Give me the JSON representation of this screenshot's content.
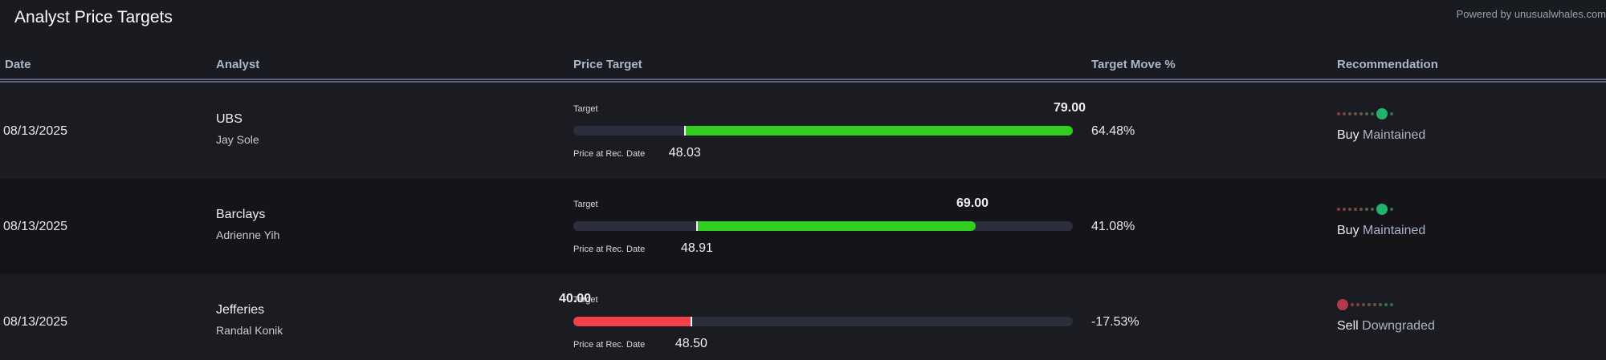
{
  "header": {
    "title": "Analyst Price Targets",
    "powered_by": "Powered by unusualwhales.com"
  },
  "columns": {
    "date": "Date",
    "analyst": "Analyst",
    "price_target": "Price Target",
    "target_move": "Target Move %",
    "recommendation": "Recommendation"
  },
  "labels": {
    "target": "Target",
    "price_at_rec": "Price at Rec. Date"
  },
  "colors": {
    "up": "#2fce1f",
    "down": "#f2414a",
    "buy_dot": "#21b36b",
    "sell_dot": "#b5394c",
    "dot_scale": [
      "#8a3a45",
      "#7d4144",
      "#734a44",
      "#6a5344",
      "#5f5b43",
      "#4e6548",
      "#3c6b4f",
      "#2f7053"
    ]
  },
  "scale": {
    "min": 40.0,
    "max": 76.0
  },
  "rows": [
    {
      "date": "08/13/2025",
      "firm": "UBS",
      "analyst": "Jay Sole",
      "target": "79.00",
      "current": "48.03",
      "target_move": "64.48%",
      "rating": "Buy",
      "action": "Maintained",
      "rating_level": 7,
      "direction": "up"
    },
    {
      "date": "08/13/2025",
      "firm": "Barclays",
      "analyst": "Adrienne Yih",
      "target": "69.00",
      "current": "48.91",
      "target_move": "41.08%",
      "rating": "Buy",
      "action": "Maintained",
      "rating_level": 7,
      "direction": "up"
    },
    {
      "date": "08/13/2025",
      "firm": "Jefferies",
      "analyst": "Randal Konik",
      "target": "40.00",
      "current": "48.50",
      "target_move": "-17.53%",
      "rating": "Sell",
      "action": "Downgraded",
      "rating_level": 0,
      "direction": "down"
    }
  ]
}
